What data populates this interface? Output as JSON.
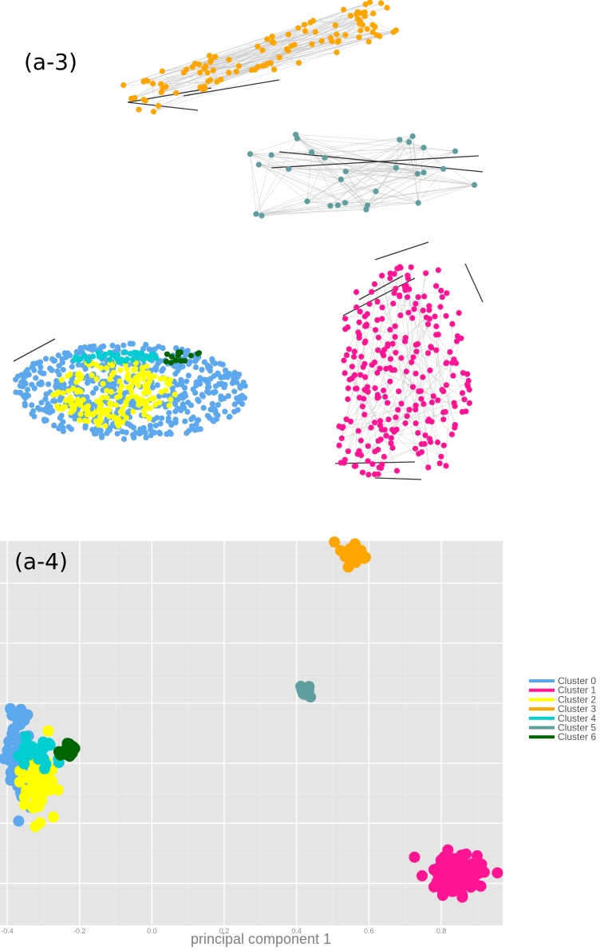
{
  "panels": {
    "top_label": "(a-3)",
    "bottom_label": "(a-4)"
  },
  "chart_data": [
    {
      "type": "network",
      "panel": "(a-3)",
      "clusters": [
        {
          "name": "Cluster 0",
          "color": "#5ca8ee",
          "approx_nodes": 600
        },
        {
          "name": "Cluster 1",
          "color": "#ff1493",
          "approx_nodes": 260
        },
        {
          "name": "Cluster 2",
          "color": "#ffff00",
          "approx_nodes": 180
        },
        {
          "name": "Cluster 3",
          "color": "#ffa500",
          "approx_nodes": 110
        },
        {
          "name": "Cluster 4",
          "color": "#00ced1",
          "approx_nodes": 40
        },
        {
          "name": "Cluster 5",
          "color": "#5f9ea0",
          "approx_nodes": 30
        },
        {
          "name": "Cluster 6",
          "color": "#006400",
          "approx_nodes": 15
        }
      ]
    },
    {
      "type": "scatter",
      "panel": "(a-4)",
      "xlabel": "principal component 1",
      "xlim": [
        -0.42,
        0.97
      ],
      "ylim": [
        -0.52,
        0.12
      ],
      "x_ticks": [
        -0.4,
        -0.2,
        0.0,
        0.2,
        0.4,
        0.6,
        0.8
      ],
      "x_tick_labels": [
        "-0.4",
        "-0.2",
        "0.0",
        "0.2",
        "0.4",
        "0.6",
        "0.8"
      ],
      "y_grid": [
        0.05,
        -0.05,
        -0.15,
        -0.25,
        -0.35,
        -0.45
      ],
      "grid": true,
      "legend_position": "right",
      "series": [
        {
          "name": "Cluster 0",
          "color": "#5ca8ee",
          "center": [
            -0.36,
            -0.24
          ],
          "spread": [
            0.018,
            0.04
          ],
          "points": 70
        },
        {
          "name": "Cluster 1",
          "color": "#ff1493",
          "center": [
            0.84,
            -0.435
          ],
          "spread": [
            0.04,
            0.02
          ],
          "points": 90
        },
        {
          "name": "Cluster 2",
          "color": "#ffff00",
          "center": [
            -0.31,
            -0.29
          ],
          "spread": [
            0.025,
            0.03
          ],
          "points": 50
        },
        {
          "name": "Cluster 3",
          "color": "#ffa500",
          "center": [
            0.555,
            0.1
          ],
          "spread": [
            0.018,
            0.008
          ],
          "points": 25
        },
        {
          "name": "Cluster 4",
          "color": "#00ced1",
          "center": [
            -0.32,
            -0.23
          ],
          "spread": [
            0.03,
            0.01
          ],
          "points": 30
        },
        {
          "name": "Cluster 5",
          "color": "#5f9ea0",
          "center": [
            0.425,
            -0.13
          ],
          "spread": [
            0.008,
            0.004
          ],
          "points": 14
        },
        {
          "name": "Cluster 6",
          "color": "#006400",
          "center": [
            -0.23,
            -0.23
          ],
          "spread": [
            0.012,
            0.007
          ],
          "points": 14
        }
      ]
    }
  ]
}
